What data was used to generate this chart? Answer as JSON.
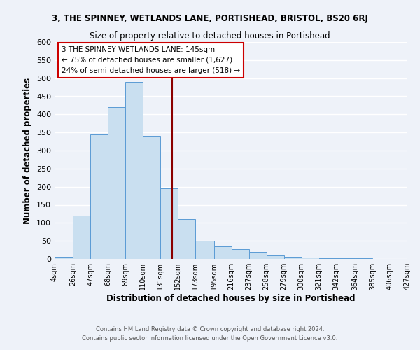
{
  "title_main": "3, THE SPINNEY, WETLANDS LANE, PORTISHEAD, BRISTOL, BS20 6RJ",
  "title_sub": "Size of property relative to detached houses in Portishead",
  "xlabel": "Distribution of detached houses by size in Portishead",
  "ylabel": "Number of detached properties",
  "bin_edges": [
    4,
    26,
    47,
    68,
    89,
    110,
    131,
    152,
    173,
    195,
    216,
    237,
    258,
    279,
    300,
    321,
    342,
    364,
    385,
    406,
    427
  ],
  "bin_counts": [
    5,
    120,
    345,
    420,
    490,
    340,
    195,
    110,
    50,
    35,
    28,
    20,
    10,
    5,
    3,
    2,
    1,
    1,
    0,
    0
  ],
  "bar_color": "#c9dff0",
  "bar_edge_color": "#5b9bd5",
  "vline_x": 145,
  "vline_color": "#8b0000",
  "ylim": [
    0,
    600
  ],
  "yticks": [
    0,
    50,
    100,
    150,
    200,
    250,
    300,
    350,
    400,
    450,
    500,
    550,
    600
  ],
  "xtick_labels": [
    "4sqm",
    "26sqm",
    "47sqm",
    "68sqm",
    "89sqm",
    "110sqm",
    "131sqm",
    "152sqm",
    "173sqm",
    "195sqm",
    "216sqm",
    "237sqm",
    "258sqm",
    "279sqm",
    "300sqm",
    "321sqm",
    "342sqm",
    "364sqm",
    "385sqm",
    "406sqm",
    "427sqm"
  ],
  "legend_title": "3 THE SPINNEY WETLANDS LANE: 145sqm",
  "legend_line1": "← 75% of detached houses are smaller (1,627)",
  "legend_line2": "24% of semi-detached houses are larger (518) →",
  "legend_box_color": "#ffffff",
  "legend_box_edge": "#cc0000",
  "footer_line1": "Contains HM Land Registry data © Crown copyright and database right 2024.",
  "footer_line2": "Contains public sector information licensed under the Open Government Licence v3.0.",
  "background_color": "#eef2f9",
  "grid_color": "#ffffff"
}
